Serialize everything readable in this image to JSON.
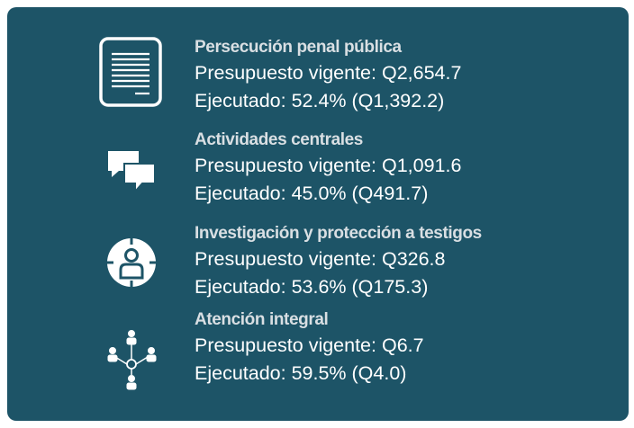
{
  "items": [
    {
      "title": "Persecución penal pública",
      "budget": "Presupuesto vigente: Q2,654.7",
      "executed": "Ejecutado: 52.4% (Q1,392.2)"
    },
    {
      "title": "Actividades centrales",
      "budget": "Presupuesto vigente: Q1,091.6",
      "executed": "Ejecutado: 45.0% (Q491.7)"
    },
    {
      "title": "Investigación y protección a testigos",
      "budget": "Presupuesto vigente: Q326.8",
      "executed": "Ejecutado: 53.6% (Q175.3)"
    },
    {
      "title": "Atención integral",
      "budget": "Presupuesto vigente: Q6.7",
      "executed": "Ejecutado: 59.5% (Q4.0)"
    }
  ]
}
